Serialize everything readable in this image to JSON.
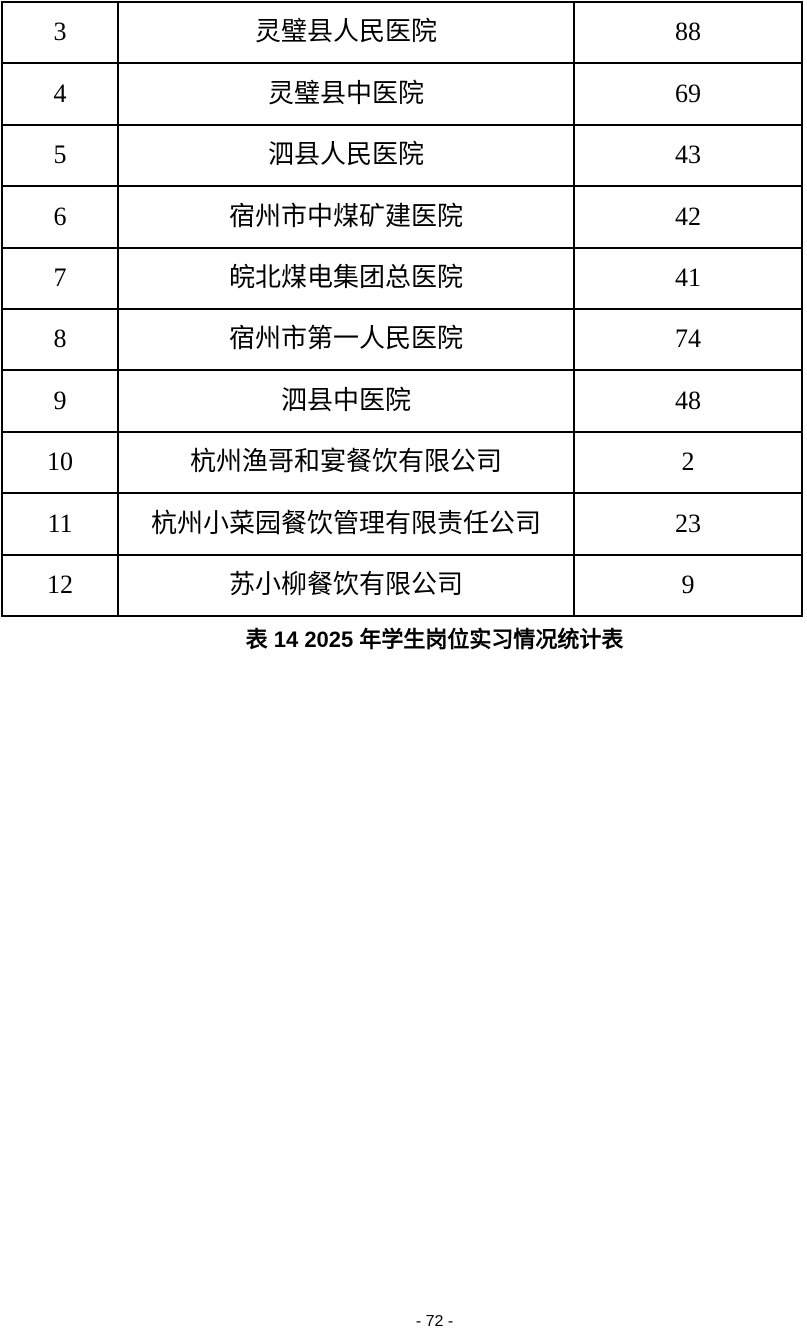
{
  "table": {
    "caption": "表 14 2025 年学生岗位实习情况统计表",
    "rows": [
      {
        "index": "3",
        "name": "灵璧县人民医院",
        "count": "88"
      },
      {
        "index": "4",
        "name": "灵璧县中医院",
        "count": "69"
      },
      {
        "index": "5",
        "name": "泗县人民医院",
        "count": "43"
      },
      {
        "index": "6",
        "name": "宿州市中煤矿建医院",
        "count": "42"
      },
      {
        "index": "7",
        "name": "皖北煤电集团总医院",
        "count": "41"
      },
      {
        "index": "8",
        "name": "宿州市第一人民医院",
        "count": "74"
      },
      {
        "index": "9",
        "name": "泗县中医院",
        "count": "48"
      },
      {
        "index": "10",
        "name": "杭州渔哥和宴餐饮有限公司",
        "count": "2"
      },
      {
        "index": "11",
        "name": "杭州小菜园餐饮管理有限责任公司",
        "count": "23"
      },
      {
        "index": "12",
        "name": "苏小柳餐饮有限公司",
        "count": "9"
      }
    ]
  },
  "page": {
    "number_label": "- 72 -"
  }
}
